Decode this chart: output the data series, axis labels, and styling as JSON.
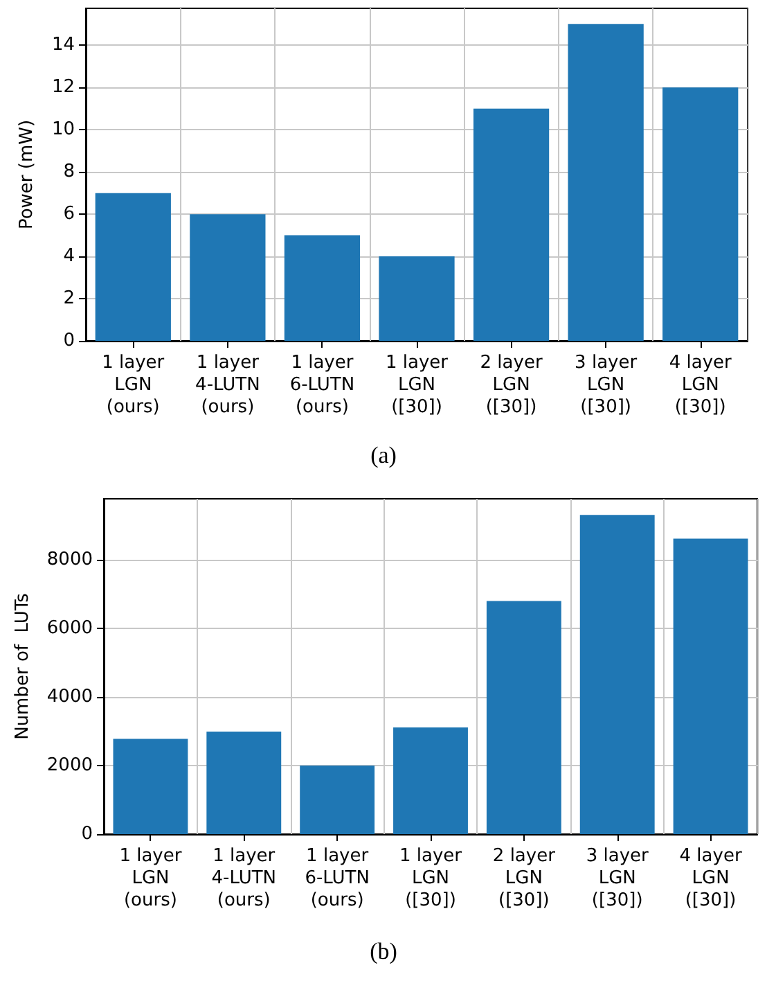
{
  "chart_data": [
    {
      "type": "bar",
      "ylabel": "Power (mW)",
      "annotations": [
        "(a)"
      ],
      "categories": [
        "1 layer\nLGN\n(ours)",
        "1 layer\n4-LUTN\n(ours)",
        "1 layer\n6-LUTN\n(ours)",
        "1 layer\nLGN\n([30])",
        "2 layer\nLGN\n([30])",
        "3 layer\nLGN\n([30])",
        "4 layer\nLGN\n([30])"
      ],
      "values": [
        7,
        6,
        5,
        4,
        11,
        15,
        12
      ],
      "color": "#1f77b4",
      "ylim": [
        0,
        15.75
      ],
      "yticks": [
        0,
        2,
        4,
        6,
        8,
        10,
        12,
        14
      ],
      "grid": true
    },
    {
      "type": "bar",
      "ylabel": "Number of  LUTs",
      "annotations": [
        "(b)"
      ],
      "categories": [
        "1 layer\nLGN\n(ours)",
        "1 layer\n4-LUTN\n(ours)",
        "1 layer\n6-LUTN\n(ours)",
        "1 layer\nLGN\n([30])",
        "2 layer\nLGN\n([30])",
        "3 layer\nLGN\n([30])",
        "4 layer\nLGN\n([30])"
      ],
      "values": [
        2780,
        2990,
        2000,
        3110,
        6800,
        9310,
        8620
      ],
      "color": "#1f77b4",
      "ylim": [
        0,
        9780
      ],
      "yticks": [
        0,
        2000,
        4000,
        6000,
        8000
      ],
      "grid": true
    }
  ]
}
